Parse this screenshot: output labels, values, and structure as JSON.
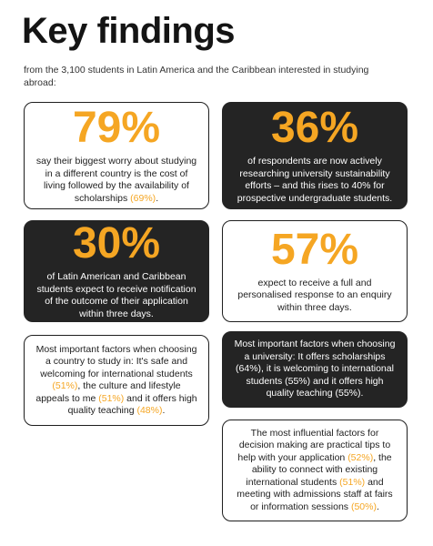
{
  "header": {
    "title": "Key findings",
    "subtitle": "from the 3,100 students in Latin America and the Caribbean interested in studying abroad:"
  },
  "cards": {
    "c1": {
      "stat": "79%",
      "text": "say their biggest worry about studying in a different country is the cost of living followed by the availability of scholarships ",
      "hl1": "(69%)",
      "after": "."
    },
    "c2": {
      "stat": "36%",
      "text": "of respondents are now actively researching university sustainability efforts – and this rises to 40% for prospective undergraduate students."
    },
    "c3": {
      "stat": "30%",
      "text": "of Latin American and Caribbean students expect to receive notification of the outcome of their application within three days."
    },
    "c4": {
      "stat": "57%",
      "text": "expect to receive a full and personalised response to an enquiry within three days."
    },
    "c5": {
      "t1": "Most important factors when choosing a country to study in: It's safe and welcoming for international students ",
      "h1": "(51%)",
      "t2": ", the culture and lifestyle appeals to me ",
      "h2": "(51%)",
      "t3": " and it offers high quality teaching ",
      "h3": "(48%)",
      "t4": "."
    },
    "c6": {
      "text": "Most important factors when choosing a university: It offers scholarships (64%), it is welcoming to international students (55%) and it offers high quality teaching (55%)."
    },
    "c7": {
      "t1": "The most influential factors for decision making are practical tips to help with your application ",
      "h1": "(52%)",
      "t2": ", the ability to connect with existing international students ",
      "h2": "(51%)",
      "t3": " and meeting with admissions staff at fairs or information sessions ",
      "h3": "(50%)",
      "t4": "."
    }
  },
  "colors": {
    "accent": "#f5a623",
    "dark": "#242424",
    "text": "#1e1e1e",
    "background": "#ffffff"
  }
}
